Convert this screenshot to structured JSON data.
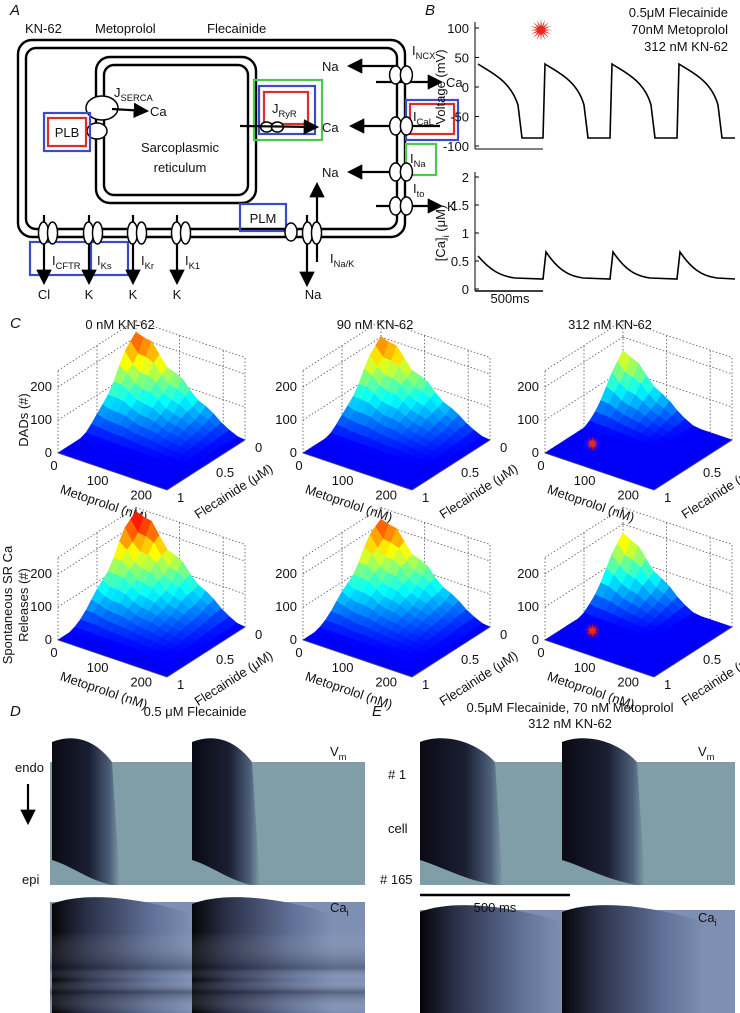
{
  "panel_a": {
    "label": "A",
    "legend": {
      "kn62": "KN-62",
      "metoprolol": "Metoprolol",
      "flecainide": "Flecainide"
    },
    "j_serca": {
      "main": "J",
      "sub": "SERCA"
    },
    "serca_ion": "Ca",
    "plb": "PLB",
    "sr": [
      "Sarcoplasmic",
      "reticulum"
    ],
    "j_ryr": {
      "main": "J",
      "sub": "RyR"
    },
    "ryr_ion": "Ca",
    "i_ncx": {
      "main": "I",
      "sub": "NCX"
    },
    "ncx_ions": [
      "Na",
      "Ca"
    ],
    "i_cal": {
      "main": "I",
      "sub": "CaL"
    },
    "i_na": {
      "main": "I",
      "sub": "Na"
    },
    "na_ion": "Na",
    "i_to": {
      "main": "I",
      "sub": "to"
    },
    "to_ion": "K",
    "plm": "PLM",
    "i_nak": {
      "main": "I",
      "sub": "Na/K"
    },
    "nak_ion": "Na",
    "bottom_currents": [
      {
        "main": "I",
        "sub": "CFTR",
        "ion": "Cl"
      },
      {
        "main": "I",
        "sub": "Ks",
        "ion": "K"
      },
      {
        "main": "I",
        "sub": "Kr",
        "ion": "K"
      },
      {
        "main": "I",
        "sub": "K1",
        "ion": "K"
      }
    ]
  },
  "panel_b": {
    "label": "B",
    "legend": [
      "0.5μM Flecainide",
      "70nM Metoprolol",
      "312 nM KN-62"
    ],
    "voltage": {
      "axis_label": "Voltage (mV)",
      "ticks": [
        100,
        50,
        0,
        -50,
        -100
      ]
    },
    "calcium": {
      "axis_label": {
        "main": "[Ca]",
        "sub": "i",
        "rest": " (μM)"
      },
      "ticks": [
        2,
        1.5,
        1,
        0.5,
        0
      ]
    },
    "scale_bar": "500ms"
  },
  "panel_c": {
    "label": "C",
    "columns": [
      "0 nM KN-62",
      "90 nM KN-62",
      "312 nM KN-62"
    ],
    "rows": [
      {
        "z_label": [
          "DADs (#)"
        ]
      },
      {
        "z_label": [
          "Spontaneous SR Ca",
          "Releases (#)"
        ]
      }
    ],
    "z_ticks": [
      0,
      100,
      200
    ],
    "metoprolol": {
      "label": "Metoprolol (nM)",
      "ticks": [
        0,
        100,
        200
      ]
    },
    "flecainide": {
      "label": "Flecainide (μM)",
      "ticks": [
        0,
        0.5,
        1
      ]
    }
  },
  "panel_d": {
    "label": "D",
    "title": "0.5 μM Flecainide",
    "endo": "endo",
    "epi": "epi",
    "vm": {
      "main": "V",
      "sub": "m"
    },
    "cai": {
      "main": "Ca",
      "sub": "i"
    }
  },
  "panel_e": {
    "label": "E",
    "title": [
      "0.5μM Flecainide, 70 nM Metoprolol",
      "312 nM KN-62"
    ],
    "cells": [
      "# 1",
      "cell",
      "# 165"
    ],
    "scale_bar": "500 ms",
    "vm": {
      "main": "V",
      "sub": "m"
    },
    "cai": {
      "main": "Ca",
      "sub": "i"
    }
  }
}
